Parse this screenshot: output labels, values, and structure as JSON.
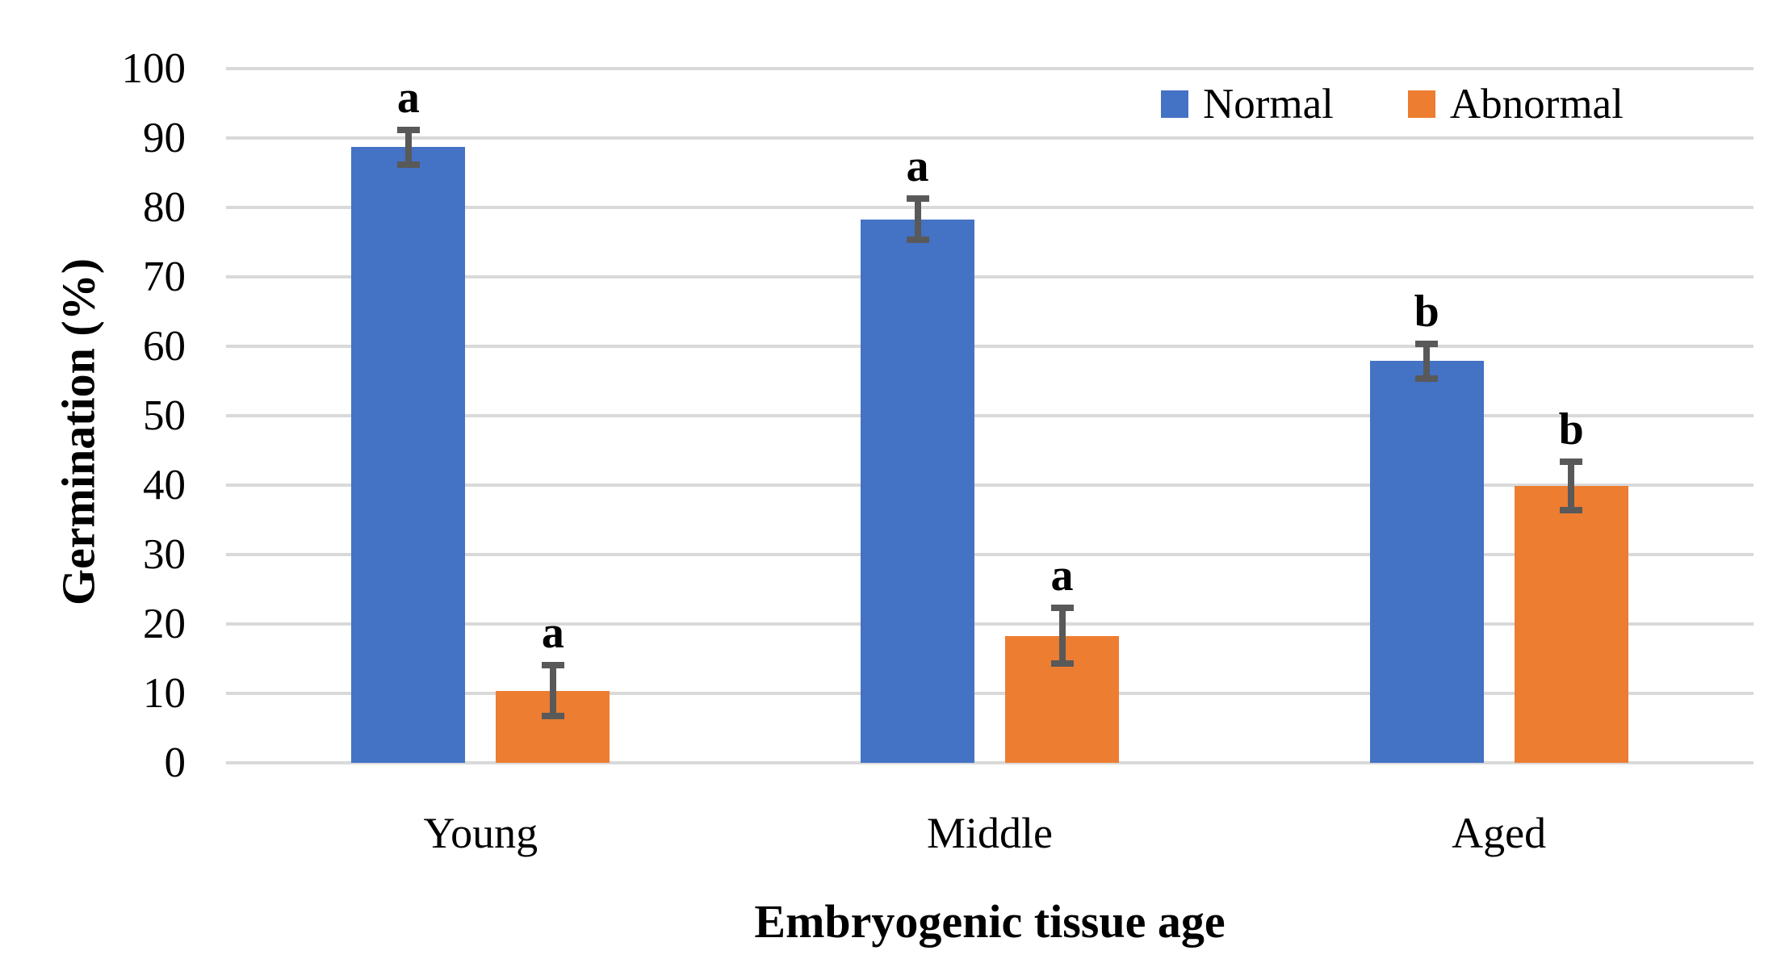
{
  "chart_data": {
    "type": "bar",
    "title": "",
    "xlabel": "Embryogenic tissue age",
    "ylabel": "Germination (%)",
    "categories": [
      "Young",
      "Middle",
      "Aged"
    ],
    "series": [
      {
        "name": "Normal",
        "color": "#4472C4",
        "values": [
          88.7,
          78.3,
          57.9
        ],
        "errors": [
          2.5,
          3.0,
          2.5
        ],
        "letters": [
          "a",
          "a",
          "b"
        ]
      },
      {
        "name": "Abnormal",
        "color": "#ED7D31",
        "values": [
          10.4,
          18.3,
          39.9
        ],
        "errors": [
          3.7,
          4.0,
          3.5
        ],
        "letters": [
          "a",
          "a",
          "b"
        ]
      }
    ],
    "ylim": [
      0,
      100
    ],
    "yticks": [
      0,
      10,
      20,
      30,
      40,
      50,
      60,
      70,
      80,
      90,
      100
    ],
    "grid": "horizontal",
    "gridline_color": "#D9D9D9",
    "error_bar_color": "#595959",
    "legend_position": "top-right-inside",
    "legend": [
      "Normal",
      "Abnormal"
    ]
  }
}
